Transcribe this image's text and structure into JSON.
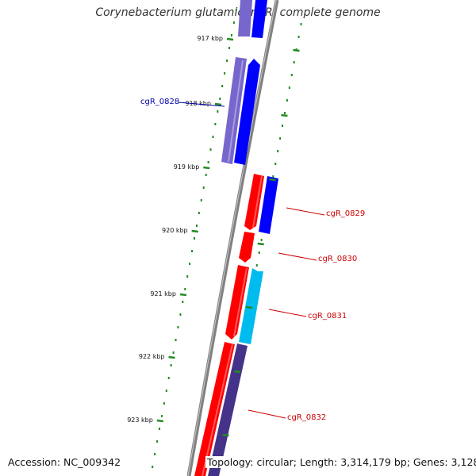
{
  "title": "Corynebacterium glutamicum R, complete genome",
  "accession_label": "Accession: NC_009342",
  "topology_label": "Topology: circular; Length: 3,314,179 bp; Genes: 3,128",
  "ticks": [
    {
      "label": "917 kbp"
    },
    {
      "label": "918 kbp"
    },
    {
      "label": "919 kbp"
    },
    {
      "label": "920 kbp"
    },
    {
      "label": "921 kbp"
    },
    {
      "label": "922 kbp"
    },
    {
      "label": "923 kbp"
    }
  ],
  "genes": [
    {
      "label": "cgR_0828",
      "color": "#0000aa"
    },
    {
      "label": "cgR_0829",
      "color": "#cc0000"
    },
    {
      "label": "cgR_0830",
      "color": "#cc0000"
    },
    {
      "label": "cgR_0831",
      "color": "#cc0000"
    },
    {
      "label": "cgR_0832",
      "color": "#cc0000"
    }
  ],
  "colors": {
    "backbone": "#808080",
    "tick": "#228B22",
    "red_feature": "#ff0000",
    "blue_feature": "#0000ff",
    "purple_feature": "#7766cc",
    "cyan_feature": "#00bbee",
    "dark_purple_feature": "#443388"
  }
}
